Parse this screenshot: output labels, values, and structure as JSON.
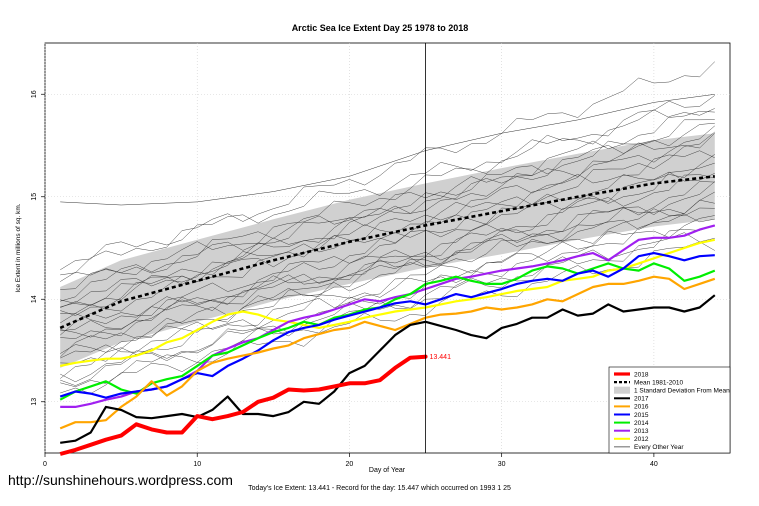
{
  "chart_data": {
    "type": "line",
    "title": "Arctic Sea Ice Extent Day 25 1978 to 2018",
    "xlabel": "Day of Year",
    "ylabel": "Ice Extent in millions of sq. km.",
    "xlim": [
      0,
      45
    ],
    "ylim": [
      12.5,
      16.5
    ],
    "xticks": [
      0,
      10,
      20,
      30,
      40
    ],
    "yticks": [
      13,
      14,
      15,
      16
    ],
    "current_day_line": 25,
    "annotation": "13.441",
    "legend_position": "bottom-right",
    "legend": [
      {
        "name": "2018",
        "color": "#ff0000",
        "style": "line-thick"
      },
      {
        "name": "Mean 1981-2010",
        "color": "#000000",
        "style": "dashed"
      },
      {
        "name": "1 Standard Deviation From Mean",
        "color": "#d0d0d0",
        "style": "box"
      },
      {
        "name": "2017",
        "color": "#000000",
        "style": "line"
      },
      {
        "name": "2016",
        "color": "#ffa500",
        "style": "line"
      },
      {
        "name": "2015",
        "color": "#0000ff",
        "style": "line"
      },
      {
        "name": "2014",
        "color": "#00ee00",
        "style": "line"
      },
      {
        "name": "2013",
        "color": "#a020f0",
        "style": "line"
      },
      {
        "name": "2012",
        "color": "#ffff00",
        "style": "line"
      },
      {
        "name": "Every Other Year",
        "color": "#000000",
        "style": "thin"
      }
    ],
    "mean_1981_2010": {
      "x": [
        1,
        5,
        10,
        15,
        20,
        25,
        30,
        35,
        40,
        44
      ],
      "values": [
        13.72,
        13.98,
        14.18,
        14.38,
        14.56,
        14.72,
        14.86,
        15.0,
        15.13,
        15.2
      ]
    },
    "std_band": {
      "x": [
        1,
        5,
        10,
        15,
        20,
        25,
        30,
        35,
        40,
        44
      ],
      "upper": [
        14.12,
        14.38,
        14.58,
        14.78,
        14.97,
        15.13,
        15.28,
        15.42,
        15.55,
        15.62
      ],
      "lower": [
        13.33,
        13.58,
        13.78,
        13.98,
        14.15,
        14.31,
        14.44,
        14.58,
        14.71,
        14.78
      ]
    },
    "series": [
      {
        "name": "2018",
        "color": "#ff0000",
        "width": 4,
        "x": [
          1,
          2,
          3,
          4,
          5,
          6,
          7,
          8,
          9,
          10,
          11,
          12,
          13,
          14,
          15,
          16,
          17,
          18,
          19,
          20,
          21,
          22,
          23,
          24,
          25
        ],
        "values": [
          12.49,
          12.53,
          12.58,
          12.63,
          12.67,
          12.78,
          12.73,
          12.7,
          12.7,
          12.86,
          12.83,
          12.86,
          12.9,
          13.0,
          13.04,
          13.12,
          13.11,
          13.12,
          13.15,
          13.18,
          13.18,
          13.21,
          13.33,
          13.43,
          13.44
        ]
      },
      {
        "name": "2017",
        "color": "#000000",
        "width": 2.2,
        "x": [
          1,
          2,
          3,
          4,
          5,
          6,
          7,
          8,
          9,
          10,
          11,
          12,
          13,
          14,
          15,
          16,
          17,
          18,
          19,
          20,
          21,
          22,
          23,
          24,
          25,
          26,
          27,
          28,
          29,
          30,
          31,
          32,
          33,
          34,
          35,
          36,
          37,
          38,
          39,
          40,
          41,
          42,
          43,
          44
        ],
        "values": [
          12.6,
          12.62,
          12.7,
          12.95,
          12.92,
          12.85,
          12.84,
          12.86,
          12.88,
          12.85,
          12.92,
          13.05,
          12.88,
          12.88,
          12.86,
          12.9,
          13.0,
          12.98,
          13.1,
          13.28,
          13.35,
          13.5,
          13.65,
          13.75,
          13.78,
          13.74,
          13.7,
          13.65,
          13.62,
          13.72,
          13.76,
          13.82,
          13.82,
          13.9,
          13.84,
          13.86,
          13.95,
          13.88,
          13.9,
          13.92,
          13.92,
          13.88,
          13.92,
          14.04
        ]
      },
      {
        "name": "2016",
        "color": "#ffa500",
        "width": 2.2,
        "x": [
          1,
          2,
          3,
          4,
          5,
          6,
          7,
          8,
          9,
          10,
          11,
          12,
          13,
          14,
          15,
          16,
          17,
          18,
          19,
          20,
          21,
          22,
          23,
          24,
          25,
          26,
          27,
          28,
          29,
          30,
          31,
          32,
          33,
          34,
          35,
          36,
          37,
          38,
          39,
          40,
          41,
          42,
          43,
          44
        ],
        "values": [
          12.74,
          12.8,
          12.8,
          12.82,
          12.95,
          13.05,
          13.2,
          13.06,
          13.15,
          13.3,
          13.38,
          13.42,
          13.45,
          13.48,
          13.52,
          13.55,
          13.62,
          13.66,
          13.7,
          13.72,
          13.78,
          13.74,
          13.7,
          13.76,
          13.82,
          13.85,
          13.86,
          13.88,
          13.92,
          13.9,
          13.92,
          13.95,
          14.0,
          13.98,
          14.05,
          14.12,
          14.15,
          14.15,
          14.18,
          14.22,
          14.2,
          14.1,
          14.15,
          14.2
        ]
      },
      {
        "name": "2015",
        "color": "#0000ff",
        "width": 2.2,
        "x": [
          1,
          2,
          3,
          4,
          5,
          6,
          7,
          8,
          9,
          10,
          11,
          12,
          13,
          14,
          15,
          16,
          17,
          18,
          19,
          20,
          21,
          22,
          23,
          24,
          25,
          26,
          27,
          28,
          29,
          30,
          31,
          32,
          33,
          34,
          35,
          36,
          37,
          38,
          39,
          40,
          41,
          42,
          43,
          44
        ],
        "values": [
          13.05,
          13.1,
          13.08,
          13.04,
          13.08,
          13.1,
          13.12,
          13.15,
          13.22,
          13.28,
          13.25,
          13.35,
          13.42,
          13.5,
          13.6,
          13.68,
          13.72,
          13.75,
          13.8,
          13.84,
          13.88,
          13.92,
          13.96,
          13.98,
          13.95,
          14.0,
          14.05,
          14.02,
          14.06,
          14.1,
          14.15,
          14.18,
          14.2,
          14.18,
          14.25,
          14.28,
          14.22,
          14.3,
          14.42,
          14.45,
          14.42,
          14.38,
          14.42,
          14.43
        ]
      },
      {
        "name": "2014",
        "color": "#00ee00",
        "width": 2.2,
        "x": [
          1,
          2,
          3,
          4,
          5,
          6,
          7,
          8,
          9,
          10,
          11,
          12,
          13,
          14,
          15,
          16,
          17,
          18,
          19,
          20,
          21,
          22,
          23,
          24,
          25,
          26,
          27,
          28,
          29,
          30,
          31,
          32,
          33,
          34,
          35,
          36,
          37,
          38,
          39,
          40,
          41,
          42,
          43,
          44
        ],
        "values": [
          13.02,
          13.1,
          13.15,
          13.2,
          13.12,
          13.08,
          13.18,
          13.22,
          13.25,
          13.35,
          13.45,
          13.48,
          13.55,
          13.62,
          13.68,
          13.72,
          13.78,
          13.75,
          13.82,
          13.85,
          13.9,
          13.92,
          14.0,
          14.05,
          14.15,
          14.18,
          14.22,
          14.18,
          14.15,
          14.15,
          14.2,
          14.28,
          14.32,
          14.3,
          14.25,
          14.3,
          14.35,
          14.3,
          14.28,
          14.35,
          14.3,
          14.18,
          14.22,
          14.28
        ]
      },
      {
        "name": "2013",
        "color": "#a020f0",
        "width": 2.2,
        "x": [
          1,
          2,
          3,
          4,
          5,
          6,
          7,
          8,
          9,
          10,
          11,
          12,
          13,
          14,
          15,
          16,
          17,
          18,
          19,
          20,
          21,
          22,
          23,
          24,
          25,
          26,
          27,
          28,
          29,
          30,
          31,
          32,
          33,
          34,
          35,
          36,
          37,
          38,
          39,
          40,
          41,
          42,
          43,
          44
        ],
        "values": [
          12.95,
          12.95,
          12.98,
          13.02,
          13.05,
          13.1,
          13.12,
          13.15,
          13.22,
          13.3,
          13.45,
          13.52,
          13.58,
          13.62,
          13.7,
          13.78,
          13.82,
          13.85,
          13.9,
          13.95,
          14.0,
          13.98,
          14.02,
          14.05,
          14.1,
          14.15,
          14.2,
          14.22,
          14.25,
          14.28,
          14.3,
          14.32,
          14.35,
          14.38,
          14.42,
          14.45,
          14.38,
          14.48,
          14.58,
          14.6,
          14.6,
          14.62,
          14.68,
          14.72
        ]
      },
      {
        "name": "2012",
        "color": "#ffff00",
        "width": 2.2,
        "x": [
          1,
          2,
          3,
          4,
          5,
          6,
          7,
          8,
          9,
          10,
          11,
          12,
          13,
          14,
          15,
          16,
          17,
          18,
          19,
          20,
          21,
          22,
          23,
          24,
          25,
          26,
          27,
          28,
          29,
          30,
          31,
          32,
          33,
          34,
          35,
          36,
          37,
          38,
          39,
          40,
          41,
          42,
          43,
          44
        ],
        "values": [
          13.35,
          13.38,
          13.4,
          13.42,
          13.42,
          13.45,
          13.5,
          13.58,
          13.62,
          13.7,
          13.78,
          13.85,
          13.88,
          13.85,
          13.8,
          13.78,
          13.75,
          13.72,
          13.75,
          13.78,
          13.82,
          13.85,
          13.88,
          13.9,
          13.92,
          13.95,
          13.98,
          14.0,
          14.02,
          14.05,
          14.08,
          14.1,
          14.12,
          14.18,
          14.2,
          14.22,
          14.28,
          14.3,
          14.35,
          14.4,
          14.45,
          14.5,
          14.55,
          14.58
        ]
      }
    ],
    "other_years": [
      {
        "x": [
          1,
          44
        ],
        "values": [
          13.55,
          15.55
        ]
      },
      {
        "x": [
          1,
          44
        ],
        "values": [
          13.85,
          15.85
        ]
      },
      {
        "x": [
          1,
          44
        ],
        "values": [
          14.05,
          16.0
        ]
      },
      {
        "x": [
          1,
          44
        ],
        "values": [
          13.7,
          15.35
        ]
      },
      {
        "x": [
          1,
          44
        ],
        "values": [
          13.45,
          15.1
        ]
      },
      {
        "x": [
          1,
          44
        ],
        "values": [
          13.95,
          15.45
        ]
      },
      {
        "x": [
          1,
          44
        ],
        "values": [
          13.3,
          14.95
        ]
      },
      {
        "x": [
          1,
          44
        ],
        "values": [
          14.15,
          15.7
        ]
      },
      {
        "x": [
          1,
          44
        ],
        "values": [
          13.62,
          15.2
        ]
      },
      {
        "x": [
          1,
          44
        ],
        "values": [
          13.2,
          14.85
        ]
      },
      {
        "x": [
          1,
          44
        ],
        "values": [
          14.25,
          16.3
        ]
      },
      {
        "x": [
          1,
          44
        ],
        "values": [
          13.8,
          15.6
        ]
      },
      {
        "x": [
          1,
          44
        ],
        "values": [
          13.15,
          14.7
        ]
      },
      {
        "x": [
          1,
          44
        ],
        "values": [
          14.0,
          15.25
        ]
      },
      {
        "x": [
          1,
          44
        ],
        "values": [
          13.5,
          15.0
        ]
      },
      {
        "x": [
          1,
          44
        ],
        "values": [
          13.75,
          14.9
        ]
      },
      {
        "x": [
          1,
          44
        ],
        "values": [
          13.1,
          14.55
        ]
      },
      {
        "x": [
          1,
          44
        ],
        "values": [
          14.35,
          15.9
        ]
      },
      {
        "x": [
          1,
          44
        ],
        "values": [
          13.4,
          14.8
        ]
      },
      {
        "x": [
          1,
          44
        ],
        "values": [
          13.9,
          15.75
        ]
      },
      {
        "x": [
          1,
          44
        ],
        "values": [
          13.25,
          14.65
        ]
      },
      {
        "x": [
          1,
          44
        ],
        "values": [
          14.12,
          15.6
        ]
      },
      {
        "x": [
          1,
          44
        ],
        "values": [
          13.65,
          15.05
        ]
      },
      {
        "x": [
          1,
          44
        ],
        "values": [
          13.35,
          15.3
        ]
      }
    ],
    "high_1993": {
      "x": [
        1,
        5,
        10,
        15,
        20,
        25,
        30,
        35,
        40,
        44
      ],
      "values": [
        14.95,
        14.92,
        14.95,
        15.05,
        15.2,
        15.45,
        15.62,
        15.75,
        15.92,
        16.0
      ]
    }
  },
  "footer": {
    "watermark": "http://sunshinehours.wordpress.com",
    "note": "Today's Ice Extent: 13.441  -  Record for the day: 15.447 which occurred on 1993 1 25"
  }
}
